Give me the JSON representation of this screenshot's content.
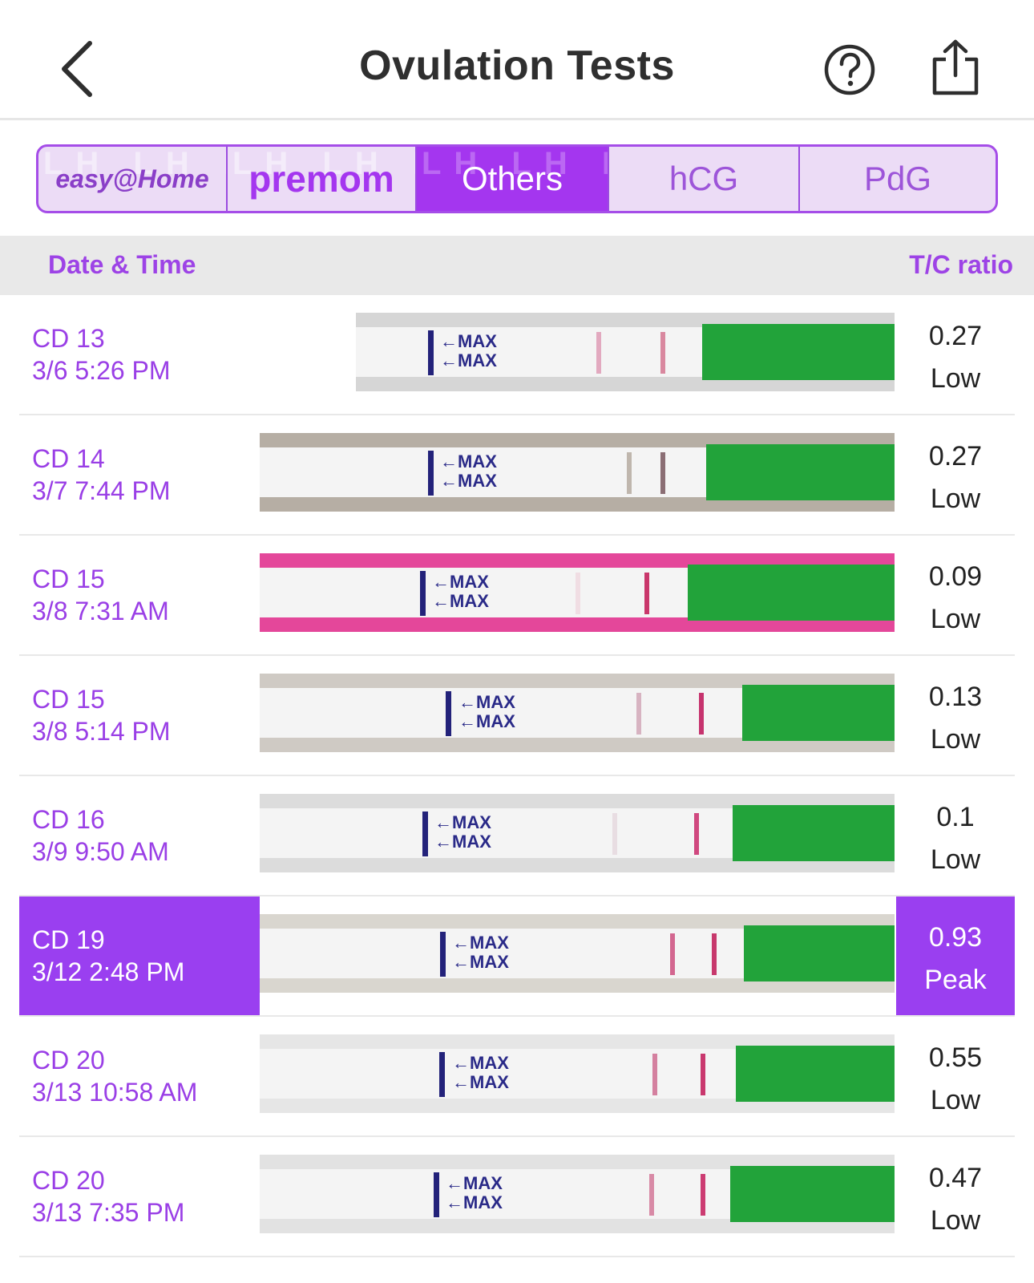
{
  "header": {
    "title": "Ovulation Tests",
    "back_icon": "chevron-left-icon",
    "help_icon": "question-circle-icon",
    "share_icon": "share-icon"
  },
  "tabs": [
    {
      "label": "easy@Home",
      "type": "logo"
    },
    {
      "label": "premom",
      "type": "logo"
    },
    {
      "label": "Others",
      "active": true
    },
    {
      "label": "hCG"
    },
    {
      "label": "PdG"
    }
  ],
  "tab_background_text": "LH LH LH",
  "table": {
    "col_date": "Date & Time",
    "col_ratio": "T/C ratio"
  },
  "strip_label": "MAX",
  "colors": {
    "accent": "#9a3ff0",
    "strip_green": "#22a33a",
    "strip_band": "#23227a",
    "test_line": "#d4286f"
  },
  "rows": [
    {
      "cd": "CD 13",
      "datetime": "3/6 5:26 PM",
      "ratio": "0.27",
      "level": "Low"
    },
    {
      "cd": "CD 14",
      "datetime": "3/7 7:44 PM",
      "ratio": "0.27",
      "level": "Low"
    },
    {
      "cd": "CD 15",
      "datetime": "3/8 7:31 AM",
      "ratio": "0.09",
      "level": "Low"
    },
    {
      "cd": "CD 15",
      "datetime": "3/8 5:14 PM",
      "ratio": "0.13",
      "level": "Low"
    },
    {
      "cd": "CD 16",
      "datetime": "3/9 9:50 AM",
      "ratio": "0.1",
      "level": "Low"
    },
    {
      "cd": "CD 19",
      "datetime": "3/12 2:48 PM",
      "ratio": "0.93",
      "level": "Peak",
      "highlight": true
    },
    {
      "cd": "CD 20",
      "datetime": "3/13 10:58 AM",
      "ratio": "0.55",
      "level": "Low"
    },
    {
      "cd": "CD 20",
      "datetime": "3/13 7:35 PM",
      "ratio": "0.47",
      "level": "Low"
    }
  ]
}
